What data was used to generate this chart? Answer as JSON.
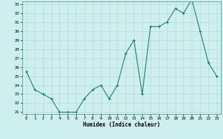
{
  "x": [
    0,
    1,
    2,
    3,
    4,
    5,
    6,
    7,
    8,
    9,
    10,
    11,
    12,
    13,
    14,
    15,
    16,
    17,
    18,
    19,
    20,
    21,
    22,
    23
  ],
  "y": [
    25.5,
    23.5,
    23.0,
    22.5,
    21.0,
    21.0,
    21.0,
    22.5,
    23.5,
    24.0,
    22.5,
    24.0,
    27.5,
    29.0,
    23.0,
    30.5,
    30.5,
    31.0,
    32.5,
    32.0,
    33.5,
    30.0,
    26.5,
    25.0
  ],
  "xlabel": "Humidex (Indice chaleur)",
  "ylabel": "",
  "ylim": [
    21,
    33
  ],
  "xlim": [
    -0.5,
    23.5
  ],
  "yticks": [
    21,
    22,
    23,
    24,
    25,
    26,
    27,
    28,
    29,
    30,
    31,
    32,
    33
  ],
  "xticks": [
    0,
    1,
    2,
    3,
    4,
    5,
    6,
    7,
    8,
    9,
    10,
    11,
    12,
    13,
    14,
    15,
    16,
    17,
    18,
    19,
    20,
    21,
    22,
    23
  ],
  "line_color": "#1a7a6e",
  "marker_color": "#1a7a6e",
  "bg_color": "#cdf0ee",
  "grid_color": "#b8d8d5",
  "xlabel_color": "#000000",
  "fig_bg": "#cdf0ee"
}
